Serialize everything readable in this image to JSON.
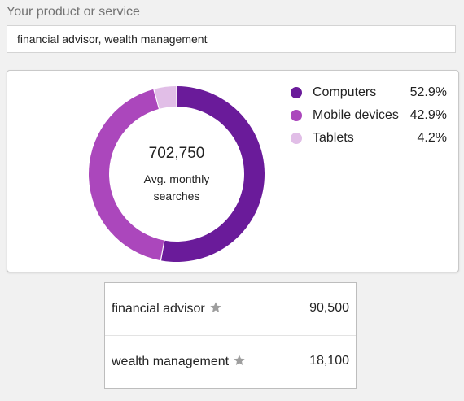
{
  "product_field": {
    "label": "Your product or service",
    "value": "financial advisor, wealth management"
  },
  "chart_data": {
    "type": "pie",
    "categories": [
      "Computers",
      "Mobile devices",
      "Tablets"
    ],
    "values": [
      52.9,
      42.9,
      4.2
    ],
    "value_labels": [
      "52.9%",
      "42.9%",
      "4.2%"
    ],
    "colors": [
      "#6a1b9a",
      "#ab47bc",
      "#e1bee7"
    ],
    "center_value": "702,750",
    "center_caption": "Avg. monthly searches",
    "legend_position": "right"
  },
  "keywords": [
    {
      "term": "financial advisor",
      "volume": "90,500",
      "icon": "star-icon"
    },
    {
      "term": "wealth management",
      "volume": "18,100",
      "icon": "star-icon"
    }
  ]
}
